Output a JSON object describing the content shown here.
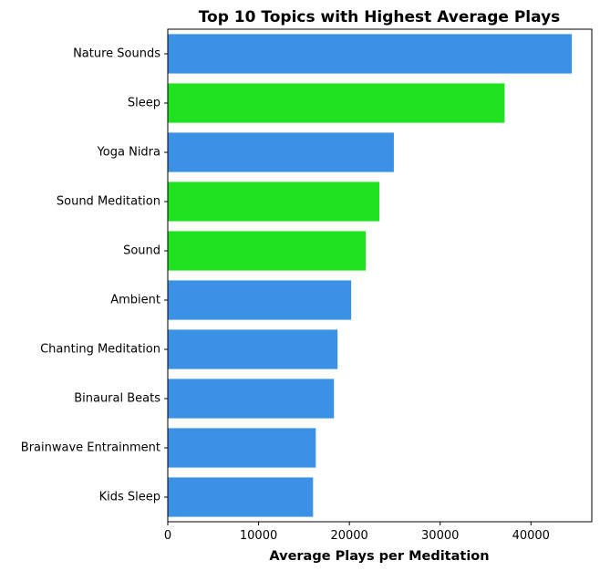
{
  "chart_data": {
    "type": "bar",
    "orientation": "horizontal",
    "title": "Top 10 Topics with Highest Average Plays",
    "xlabel": "Average Plays per Meditation",
    "ylabel": "",
    "categories": [
      "Nature Sounds",
      "Sleep",
      "Yoga Nidra",
      "Sound Meditation",
      "Sound",
      "Ambient",
      "Chanting Meditation",
      "Binaural Beats",
      "Brainwave Entrainment",
      "Kids Sleep"
    ],
    "values": [
      44500,
      37100,
      24900,
      23300,
      21800,
      20200,
      18700,
      18300,
      16300,
      16000
    ],
    "bar_colors": [
      "#3a91e6",
      "#20e220",
      "#3a91e6",
      "#20e220",
      "#20e220",
      "#3a91e6",
      "#3a91e6",
      "#3a91e6",
      "#3a91e6",
      "#3a91e6"
    ],
    "xlim": [
      0,
      46700
    ],
    "xticks": [
      0,
      10000,
      20000,
      30000,
      40000
    ],
    "grid": false,
    "legend": "none"
  }
}
